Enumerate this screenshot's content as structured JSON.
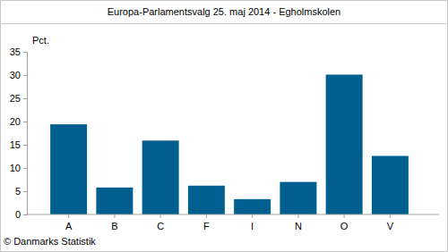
{
  "chart_data": {
    "type": "bar",
    "title": "Europa-Parlamentsvalg 25. maj 2014 - Egholmskolen",
    "ylabel": "Pct.",
    "footer": "© Danmarks Statistik",
    "categories": [
      "A",
      "B",
      "C",
      "F",
      "I",
      "N",
      "O",
      "V"
    ],
    "values": [
      19.4,
      5.8,
      15.9,
      6.2,
      3.3,
      7.0,
      30.1,
      12.6
    ],
    "color": "#005f8f",
    "ylim": [
      0,
      35
    ],
    "yticks": [
      0,
      5,
      10,
      15,
      20,
      25,
      30,
      35
    ],
    "grid": false
  }
}
